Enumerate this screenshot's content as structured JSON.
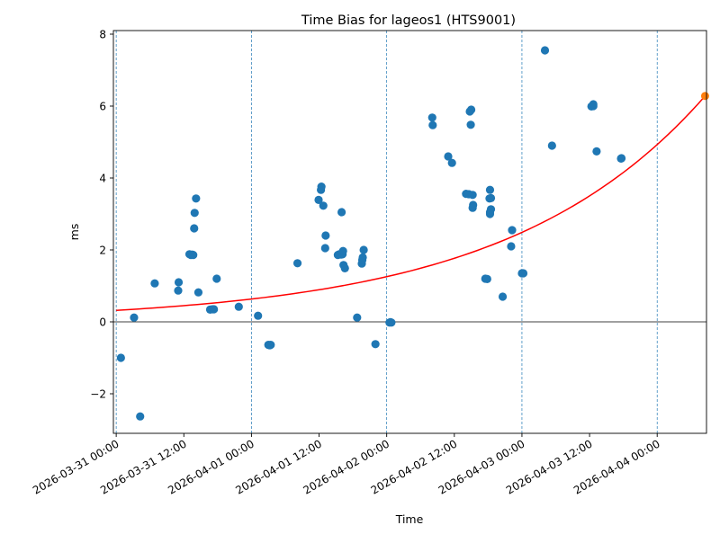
{
  "chart_data": {
    "type": "scatter",
    "title": "Time Bias for lageos1 (HTS9001)",
    "xlabel": "Time",
    "ylabel": "ms",
    "x_tick_labels": [
      "2026-03-31 00:00",
      "2026-03-31 12:00",
      "2026-04-01 00:00",
      "2026-04-01 12:00",
      "2026-04-02 00:00",
      "2026-04-02 12:00",
      "2026-04-03 00:00",
      "2026-04-03 12:00",
      "2026-04-04 00:00"
    ],
    "x_tick_values": [
      "2026-03-31 00:00",
      "2026-03-31 12:00",
      "2026-04-01 00:00",
      "2026-04-01 12:00",
      "2026-04-02 00:00",
      "2026-04-02 12:00",
      "2026-04-03 00:00",
      "2026-04-03 12:00",
      "2026-04-04 00:00"
    ],
    "vertical_day_lines": [
      "2026-03-31 00:00",
      "2026-04-01 00:00",
      "2026-04-02 00:00",
      "2026-04-03 00:00",
      "2026-04-04 00:00"
    ],
    "y_ticks": [
      -2,
      0,
      2,
      4,
      6,
      8
    ],
    "xlim": [
      "2026-03-30 23:30",
      "2026-04-04 08:45"
    ],
    "ylim": [
      -3.1,
      8.1
    ],
    "grid": false,
    "zero_line": true,
    "colors": {
      "points": "#1f77b4",
      "trend": "#ff0000",
      "last_point": "#ff7f0e",
      "day_lines": "#1f77b4"
    },
    "series": [
      {
        "points": [
          {
            "x": "2026-03-31 00:50",
            "y": -1.0
          },
          {
            "x": "2026-03-31 03:10",
            "y": 0.12
          },
          {
            "x": "2026-03-31 04:15",
            "y": -2.63
          },
          {
            "x": "2026-03-31 06:50",
            "y": 1.07
          },
          {
            "x": "2026-03-31 11:05",
            "y": 1.1
          },
          {
            "x": "2026-03-31 11:00",
            "y": 0.87
          },
          {
            "x": "2026-03-31 13:00",
            "y": 1.88
          },
          {
            "x": "2026-03-31 13:15",
            "y": 1.86
          },
          {
            "x": "2026-03-31 13:30",
            "y": 1.87
          },
          {
            "x": "2026-03-31 13:40",
            "y": 1.86
          },
          {
            "x": "2026-03-31 13:50",
            "y": 2.6
          },
          {
            "x": "2026-03-31 13:55",
            "y": 3.03
          },
          {
            "x": "2026-03-31 14:10",
            "y": 3.43
          },
          {
            "x": "2026-03-31 14:35",
            "y": 0.82
          },
          {
            "x": "2026-03-31 16:40",
            "y": 0.34
          },
          {
            "x": "2026-03-31 17:05",
            "y": 0.35
          },
          {
            "x": "2026-03-31 17:20",
            "y": 0.35
          },
          {
            "x": "2026-03-31 17:50",
            "y": 1.2
          },
          {
            "x": "2026-03-31 21:45",
            "y": 0.42
          },
          {
            "x": "2026-04-01 01:10",
            "y": 0.17
          },
          {
            "x": "2026-04-01 03:00",
            "y": -0.64
          },
          {
            "x": "2026-04-01 03:15",
            "y": -0.65
          },
          {
            "x": "2026-04-01 03:25",
            "y": -0.64
          },
          {
            "x": "2026-04-01 08:10",
            "y": 1.63
          },
          {
            "x": "2026-04-01 11:55",
            "y": 3.39
          },
          {
            "x": "2026-04-01 12:20",
            "y": 3.67
          },
          {
            "x": "2026-04-01 12:25",
            "y": 3.76
          },
          {
            "x": "2026-04-01 12:45",
            "y": 3.23
          },
          {
            "x": "2026-04-01 13:10",
            "y": 2.4
          },
          {
            "x": "2026-04-01 13:05",
            "y": 2.05
          },
          {
            "x": "2026-04-01 15:20",
            "y": 1.86
          },
          {
            "x": "2026-04-01 15:35",
            "y": 1.88
          },
          {
            "x": "2026-04-01 15:55",
            "y": 1.87
          },
          {
            "x": "2026-04-01 16:10",
            "y": 1.88
          },
          {
            "x": "2026-04-01 16:15",
            "y": 1.97
          },
          {
            "x": "2026-04-01 16:20",
            "y": 1.58
          },
          {
            "x": "2026-04-01 16:35",
            "y": 1.49
          },
          {
            "x": "2026-04-01 16:00",
            "y": 3.05
          },
          {
            "x": "2026-04-01 18:45",
            "y": 0.12
          },
          {
            "x": "2026-04-01 19:35",
            "y": 1.62
          },
          {
            "x": "2026-04-01 19:40",
            "y": 1.72
          },
          {
            "x": "2026-04-01 19:45",
            "y": 1.79
          },
          {
            "x": "2026-04-01 19:55",
            "y": 2.0
          },
          {
            "x": "2026-04-01 22:00",
            "y": -0.62
          },
          {
            "x": "2026-04-02 00:30",
            "y": -0.02
          },
          {
            "x": "2026-04-02 00:40",
            "y": -0.01
          },
          {
            "x": "2026-04-02 00:50",
            "y": -0.02
          },
          {
            "x": "2026-04-02 08:05",
            "y": 5.68
          },
          {
            "x": "2026-04-02 08:10",
            "y": 5.47
          },
          {
            "x": "2026-04-02 10:55",
            "y": 4.6
          },
          {
            "x": "2026-04-02 11:35",
            "y": 4.42
          },
          {
            "x": "2026-04-02 14:05",
            "y": 3.56
          },
          {
            "x": "2026-04-02 14:35",
            "y": 3.55
          },
          {
            "x": "2026-04-02 14:45",
            "y": 5.85
          },
          {
            "x": "2026-04-02 15:00",
            "y": 5.9
          },
          {
            "x": "2026-04-02 14:55",
            "y": 5.48
          },
          {
            "x": "2026-04-02 15:15",
            "y": 3.53
          },
          {
            "x": "2026-04-02 15:20",
            "y": 3.25
          },
          {
            "x": "2026-04-02 15:15",
            "y": 3.17
          },
          {
            "x": "2026-04-02 17:30",
            "y": 1.2
          },
          {
            "x": "2026-04-02 17:50",
            "y": 1.19
          },
          {
            "x": "2026-04-02 18:20",
            "y": 3.67
          },
          {
            "x": "2026-04-02 18:15",
            "y": 3.43
          },
          {
            "x": "2026-04-02 18:30",
            "y": 3.44
          },
          {
            "x": "2026-04-02 18:20",
            "y": 3.05
          },
          {
            "x": "2026-04-02 18:30",
            "y": 3.13
          },
          {
            "x": "2026-04-02 18:20",
            "y": 3.0
          },
          {
            "x": "2026-04-02 20:35",
            "y": 0.7
          },
          {
            "x": "2026-04-02 22:15",
            "y": 2.55
          },
          {
            "x": "2026-04-02 22:05",
            "y": 2.1
          },
          {
            "x": "2026-04-03 00:00",
            "y": 1.35
          },
          {
            "x": "2026-04-03 00:15",
            "y": 1.35
          },
          {
            "x": "2026-04-03 04:05",
            "y": 7.55
          },
          {
            "x": "2026-04-03 12:20",
            "y": 5.99
          },
          {
            "x": "2026-04-03 12:40",
            "y": 6.0
          },
          {
            "x": "2026-04-03 12:40",
            "y": 6.05
          },
          {
            "x": "2026-04-03 05:20",
            "y": 4.9
          },
          {
            "x": "2026-04-03 13:15",
            "y": 4.74
          },
          {
            "x": "2026-04-03 17:35",
            "y": 4.54
          },
          {
            "x": "2026-04-03 17:40",
            "y": 4.55
          }
        ]
      }
    ],
    "trend_curve": [
      {
        "x": "2026-03-31 00:00",
        "y": 0.32
      },
      {
        "x": "2026-04-04 08:30",
        "y": 6.28
      }
    ],
    "last_point": {
      "x": "2026-04-04 08:30",
      "y": 6.28
    }
  }
}
